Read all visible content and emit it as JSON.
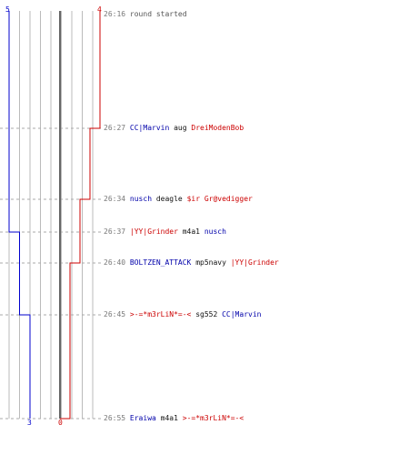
{
  "scores": {
    "blue_start": "5",
    "red_start": "4",
    "blue_end": "3",
    "red_end": "0"
  },
  "colors": {
    "blue_team": "#0000cc",
    "red_team": "#cc0000",
    "grid": "#bbbbbb",
    "divider": "#666666",
    "time": "#777777"
  },
  "events": [
    {
      "time": "26:16",
      "text": "round started"
    },
    {
      "time": "26:27",
      "attacker": "CC|Marvin",
      "weapon": "aug",
      "victim": "DreiModenBob"
    },
    {
      "time": "26:34",
      "attacker": "nusch",
      "weapon": "deagle",
      "victim": "$ir Gr@vedigger"
    },
    {
      "time": "26:37",
      "attacker": "|YY|Grinder",
      "weapon": "m4a1",
      "victim": "nusch"
    },
    {
      "time": "26:40",
      "attacker": "BOLTZEN_ATTACK",
      "weapon": "mp5navy",
      "victim": "|YY|Grinder"
    },
    {
      "time": "26:45",
      "attacker": ">-=*m3rLiN*=-<",
      "weapon": "sg552",
      "victim": "CC|Marvin"
    },
    {
      "time": "26:55",
      "attacker": "Eraiwa",
      "weapon": "m4a1",
      "victim": ">-=*m3rLiN*=-<"
    }
  ]
}
